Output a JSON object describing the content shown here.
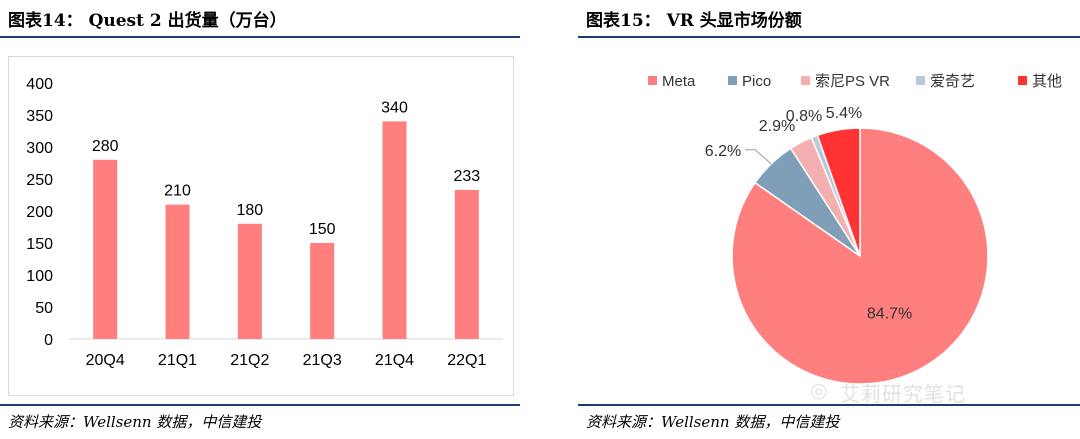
{
  "charts": [
    {
      "title": "图表14： Quest 2 出货量（万台）",
      "source": "资料来源：Wellsenn 数据，中信建投"
    },
    {
      "title": "图表15： VR 头显市场份额",
      "source": "资料来源：Wellsenn 数据，中信建投"
    }
  ],
  "watermark": {
    "text": "艾莉研究笔记",
    "icon": "wechat-icon"
  },
  "chart_data": [
    {
      "type": "bar",
      "title": "Quest 2 出货量（万台）",
      "categories": [
        "20Q4",
        "21Q1",
        "21Q2",
        "21Q3",
        "21Q4",
        "22Q1"
      ],
      "values": [
        280,
        210,
        180,
        150,
        340,
        233
      ],
      "data_labels": [
        "280",
        "210",
        "180",
        "150",
        "340",
        "233"
      ],
      "ylim": [
        0,
        400
      ],
      "yticks": [
        "0",
        "50",
        "100",
        "150",
        "200",
        "250",
        "300",
        "350",
        "400"
      ],
      "grid": false,
      "bar_color": "#ff7f7f"
    },
    {
      "type": "pie",
      "title": "VR 头显市场份额",
      "labels": [
        "Meta",
        "Pico",
        "索尼PS VR",
        "爱奇艺",
        "其他"
      ],
      "values": [
        84.7,
        6.2,
        2.9,
        0.8,
        5.4
      ],
      "data_labels": [
        "84.7%",
        "6.2%",
        "2.9%",
        "0.8%",
        "5.4%"
      ],
      "colors": [
        "#ff7f7f",
        "#7f9fb8",
        "#f4b0b0",
        "#b8c9d9",
        "#ff3333"
      ],
      "legend_position": "top"
    }
  ]
}
